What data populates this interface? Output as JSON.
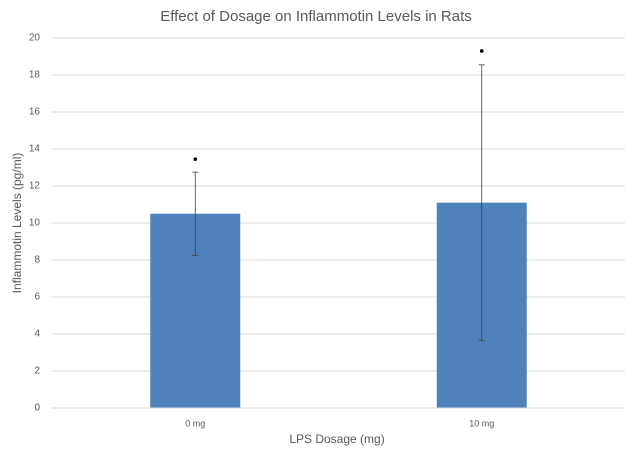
{
  "chart_data": {
    "type": "bar",
    "title": "Effect of Dosage on Inflammotin Levels in Rats",
    "x_label": "LPS Dosage (mg)",
    "y_label": "Inflammotin  Levels (pg/ml)",
    "categories": [
      "0 mg",
      "10 mg"
    ],
    "values": [
      10.5,
      11.1
    ],
    "errors": [
      2.25,
      7.45
    ],
    "points": [
      13.45,
      19.3
    ],
    "color": "#4f81bd",
    "ylim": [
      0,
      20
    ],
    "yticks": [
      0,
      2,
      4,
      6,
      8,
      10,
      12,
      14,
      16,
      18,
      20
    ],
    "grid": true
  }
}
